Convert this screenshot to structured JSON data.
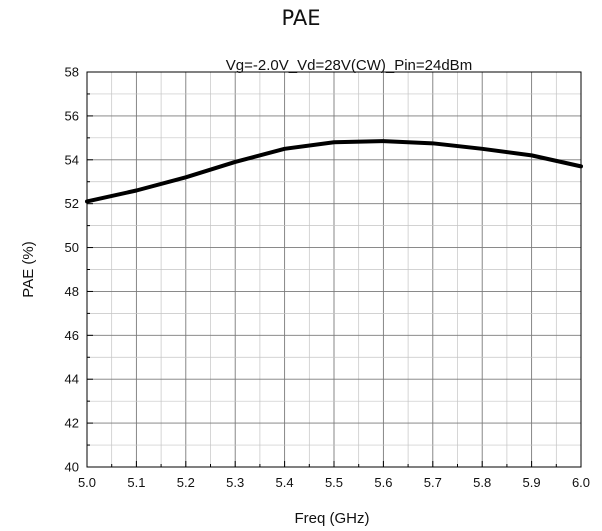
{
  "page_title": "PAE",
  "chart_data": {
    "type": "line",
    "title": "Vg=-2.0V_Vd=28V(CW)_Pin=24dBm",
    "xlabel": "Freq (GHz)",
    "ylabel": "PAE (%)",
    "xlim": [
      5.0,
      6.0
    ],
    "ylim": [
      40,
      58
    ],
    "x_ticks": [
      "5.0",
      "5.1",
      "5.2",
      "5.3",
      "5.4",
      "5.5",
      "5.6",
      "5.7",
      "5.8",
      "5.9",
      "6.0"
    ],
    "y_ticks": [
      "40",
      "42",
      "44",
      "46",
      "48",
      "50",
      "52",
      "54",
      "56",
      "58"
    ],
    "grid": true,
    "series": [
      {
        "color": "#000000",
        "x": [
          5.0,
          5.1,
          5.2,
          5.3,
          5.4,
          5.5,
          5.6,
          5.7,
          5.8,
          5.9,
          6.0
        ],
        "y": [
          52.1,
          52.6,
          53.2,
          53.9,
          54.5,
          54.8,
          54.85,
          54.75,
          54.5,
          54.2,
          53.7
        ]
      }
    ]
  }
}
